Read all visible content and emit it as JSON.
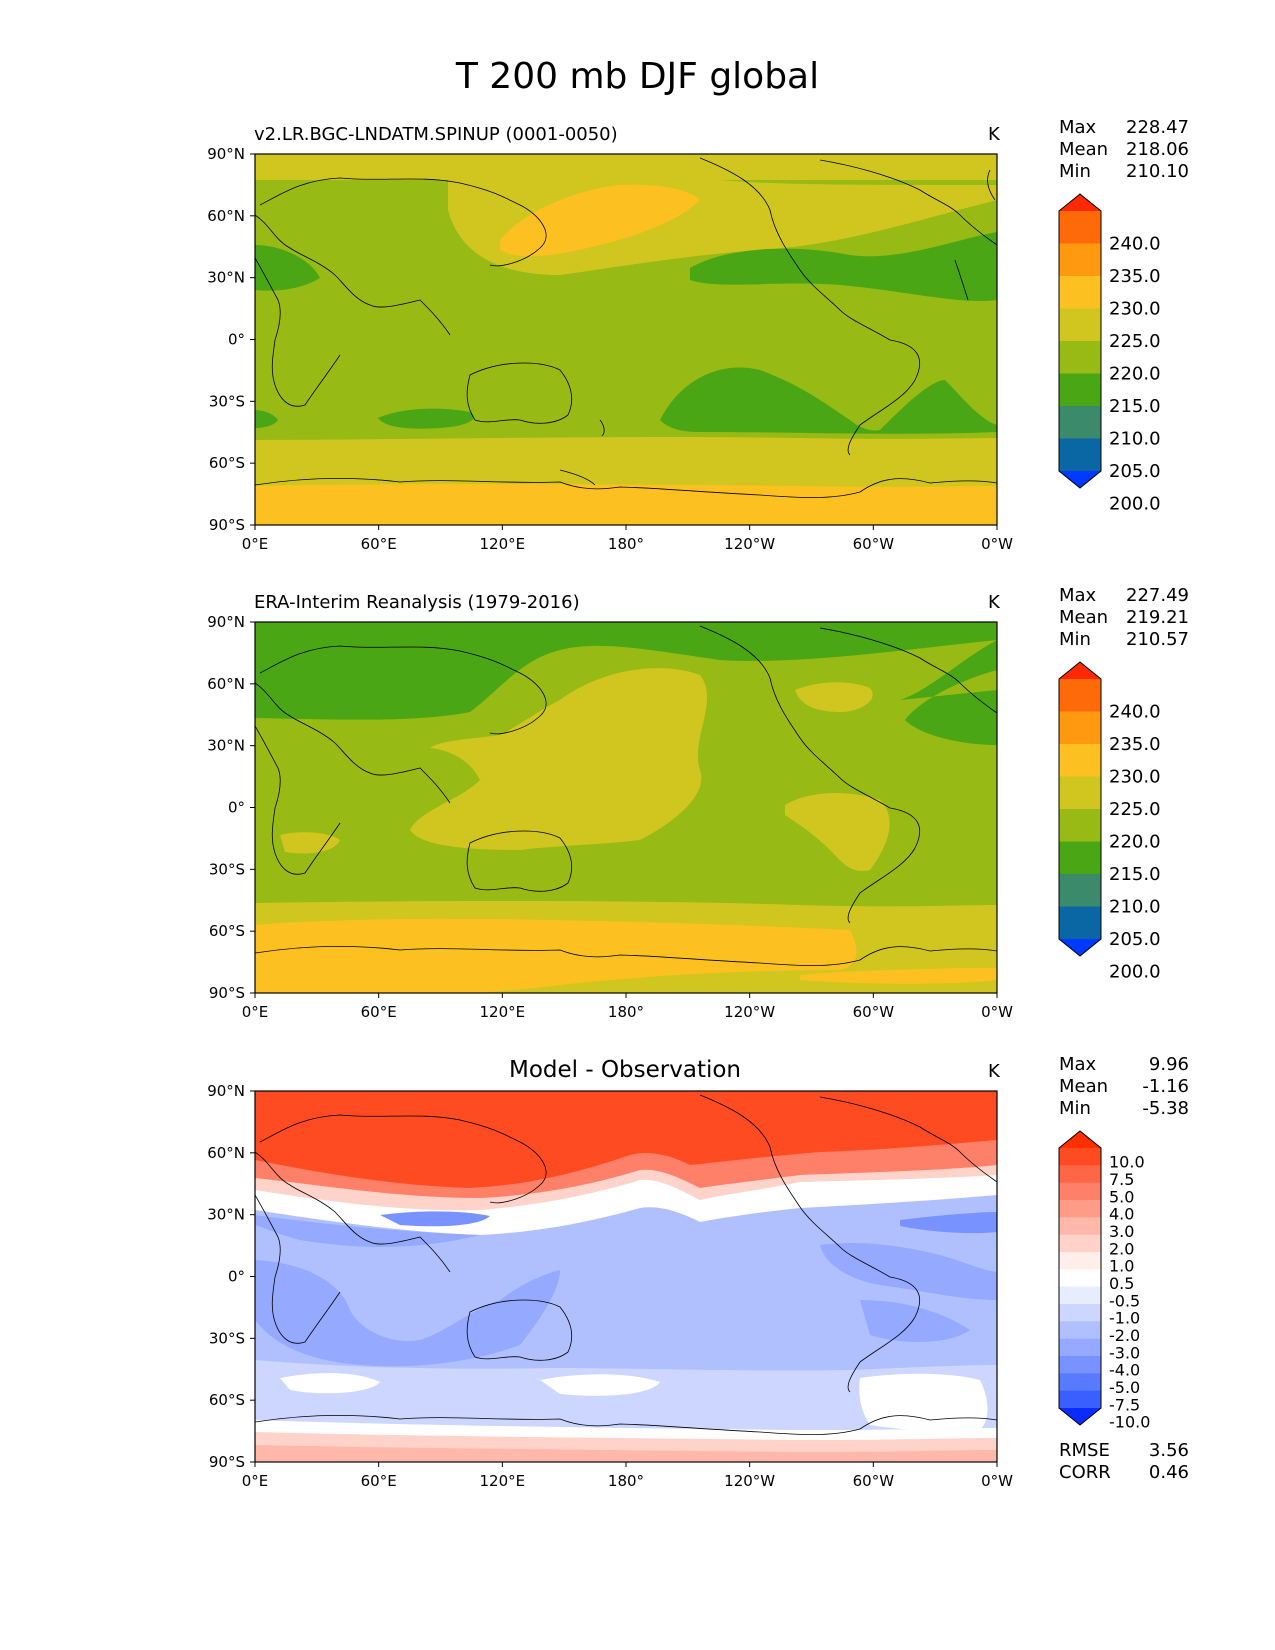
{
  "title": "T 200 mb DJF global",
  "x_ticks": [
    "0°E",
    "60°E",
    "120°E",
    "180°",
    "120°W",
    "60°W",
    "0°W"
  ],
  "y_ticks": [
    "90°N",
    "60°N",
    "30°N",
    "0°",
    "30°S",
    "60°S",
    "90°S"
  ],
  "panels": [
    {
      "subtitle": "v2.LR.BGC-LNDATM.SPINUP (0001-0050)",
      "center_title": "",
      "units": "K",
      "stats": [
        {
          "label": "Max",
          "value": "228.47"
        },
        {
          "label": "Mean",
          "value": "218.06"
        },
        {
          "label": "Min",
          "value": "210.10"
        }
      ]
    },
    {
      "subtitle": "ERA-Interim Reanalysis (1979-2016)",
      "center_title": "",
      "units": "K",
      "stats": [
        {
          "label": "Max",
          "value": "227.49"
        },
        {
          "label": "Mean",
          "value": "219.21"
        },
        {
          "label": "Min",
          "value": "210.57"
        }
      ]
    },
    {
      "subtitle": "",
      "center_title": "Model - Observation",
      "units": "K",
      "stats": [
        {
          "label": "Max",
          "value": "9.96"
        },
        {
          "label": "Mean",
          "value": "-1.16"
        },
        {
          "label": "Min",
          "value": "-5.38"
        }
      ],
      "extra_stats": [
        {
          "label": "RMSE",
          "value": "3.56"
        },
        {
          "label": "CORR",
          "value": "0.46"
        }
      ]
    }
  ],
  "colorbar_abs": {
    "labels": [
      "240.0",
      "235.0",
      "230.0",
      "225.0",
      "220.0",
      "215.0",
      "210.0",
      "205.0",
      "200.0"
    ],
    "colors": [
      "#ff2a05",
      "#ff6a08",
      "#ff9a10",
      "#fcc121",
      "#d1c61f",
      "#97ba14",
      "#4aa615",
      "#3b8a6c",
      "#0a67a3",
      "#0039ff"
    ]
  },
  "colorbar_diff": {
    "labels": [
      "10.0",
      "7.5",
      "5.0",
      "4.0",
      "3.0",
      "2.0",
      "1.0",
      "0.5",
      "-0.5",
      "-1.0",
      "-2.0",
      "-3.0",
      "-4.0",
      "-5.0",
      "-7.5",
      "-10.0"
    ],
    "colors": [
      "#ff2f00",
      "#ff4b22",
      "#ff6645",
      "#ff8068",
      "#ff9c88",
      "#ffb8a9",
      "#ffd3c9",
      "#ffeeea",
      "#ffffff",
      "#e8ecff",
      "#ccd6ff",
      "#b0c0ff",
      "#94a9ff",
      "#7893ff",
      "#587aff",
      "#3a5fff",
      "#0a2cff"
    ]
  },
  "chart_data": [
    {
      "type": "heatmap",
      "title": "v2.LR.BGC-LNDATM.SPINUP (0001-0050)",
      "variable": "T 200 mb DJF",
      "units": "K",
      "max": 228.47,
      "mean": 218.06,
      "min": 210.1,
      "levels": [
        200,
        205,
        210,
        215,
        220,
        225,
        230,
        235,
        240
      ]
    },
    {
      "type": "heatmap",
      "title": "ERA-Interim Reanalysis (1979-2016)",
      "variable": "T 200 mb DJF",
      "units": "K",
      "max": 227.49,
      "mean": 219.21,
      "min": 210.57,
      "levels": [
        200,
        205,
        210,
        215,
        220,
        225,
        230,
        235,
        240
      ]
    },
    {
      "type": "heatmap",
      "title": "Model - Observation",
      "units": "K",
      "max": 9.96,
      "mean": -1.16,
      "min": -5.38,
      "rmse": 3.56,
      "corr": 0.46,
      "levels": [
        -10,
        -7.5,
        -5,
        -4,
        -3,
        -2,
        -1,
        -0.5,
        0.5,
        1,
        2,
        3,
        4,
        5,
        7.5,
        10
      ]
    }
  ]
}
